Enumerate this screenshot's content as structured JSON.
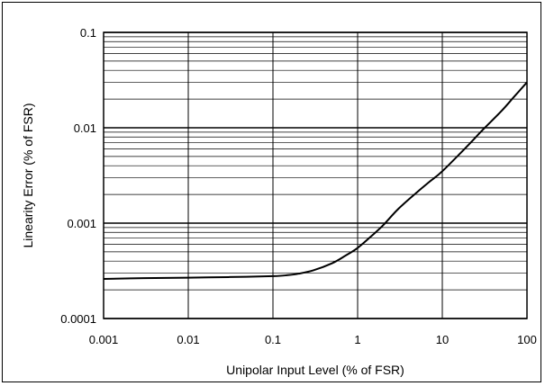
{
  "chart_data": {
    "type": "line",
    "title": "",
    "xlabel": "Unipolar Input Level (% of FSR)",
    "ylabel": "Linearity Error (% of FSR)",
    "x_scale": "log",
    "y_scale": "log",
    "xlim": [
      0.001,
      100
    ],
    "ylim": [
      0.0001,
      0.1
    ],
    "x_ticks": [
      "0.001",
      "0.01",
      "0.1",
      "1",
      "10",
      "100"
    ],
    "y_ticks": [
      "0.0001",
      "0.001",
      "0.01",
      "0.1"
    ],
    "x_tick_values": [
      0.001,
      0.01,
      0.1,
      1,
      10,
      100
    ],
    "y_tick_values": [
      0.0001,
      0.001,
      0.01,
      0.1
    ],
    "grid": true,
    "series": [
      {
        "color": "#000000",
        "x": [
          0.001,
          0.003,
          0.01,
          0.03,
          0.1,
          0.15,
          0.2,
          0.3,
          0.5,
          0.7,
          1,
          1.5,
          2,
          3,
          5,
          7,
          10,
          20,
          30,
          50,
          70,
          100
        ],
        "y": [
          0.00026,
          0.000265,
          0.000268,
          0.000272,
          0.000278,
          0.000285,
          0.000295,
          0.00032,
          0.00038,
          0.00045,
          0.00055,
          0.00075,
          0.00095,
          0.0014,
          0.0021,
          0.0027,
          0.0035,
          0.0065,
          0.0095,
          0.015,
          0.021,
          0.03
        ]
      }
    ]
  }
}
